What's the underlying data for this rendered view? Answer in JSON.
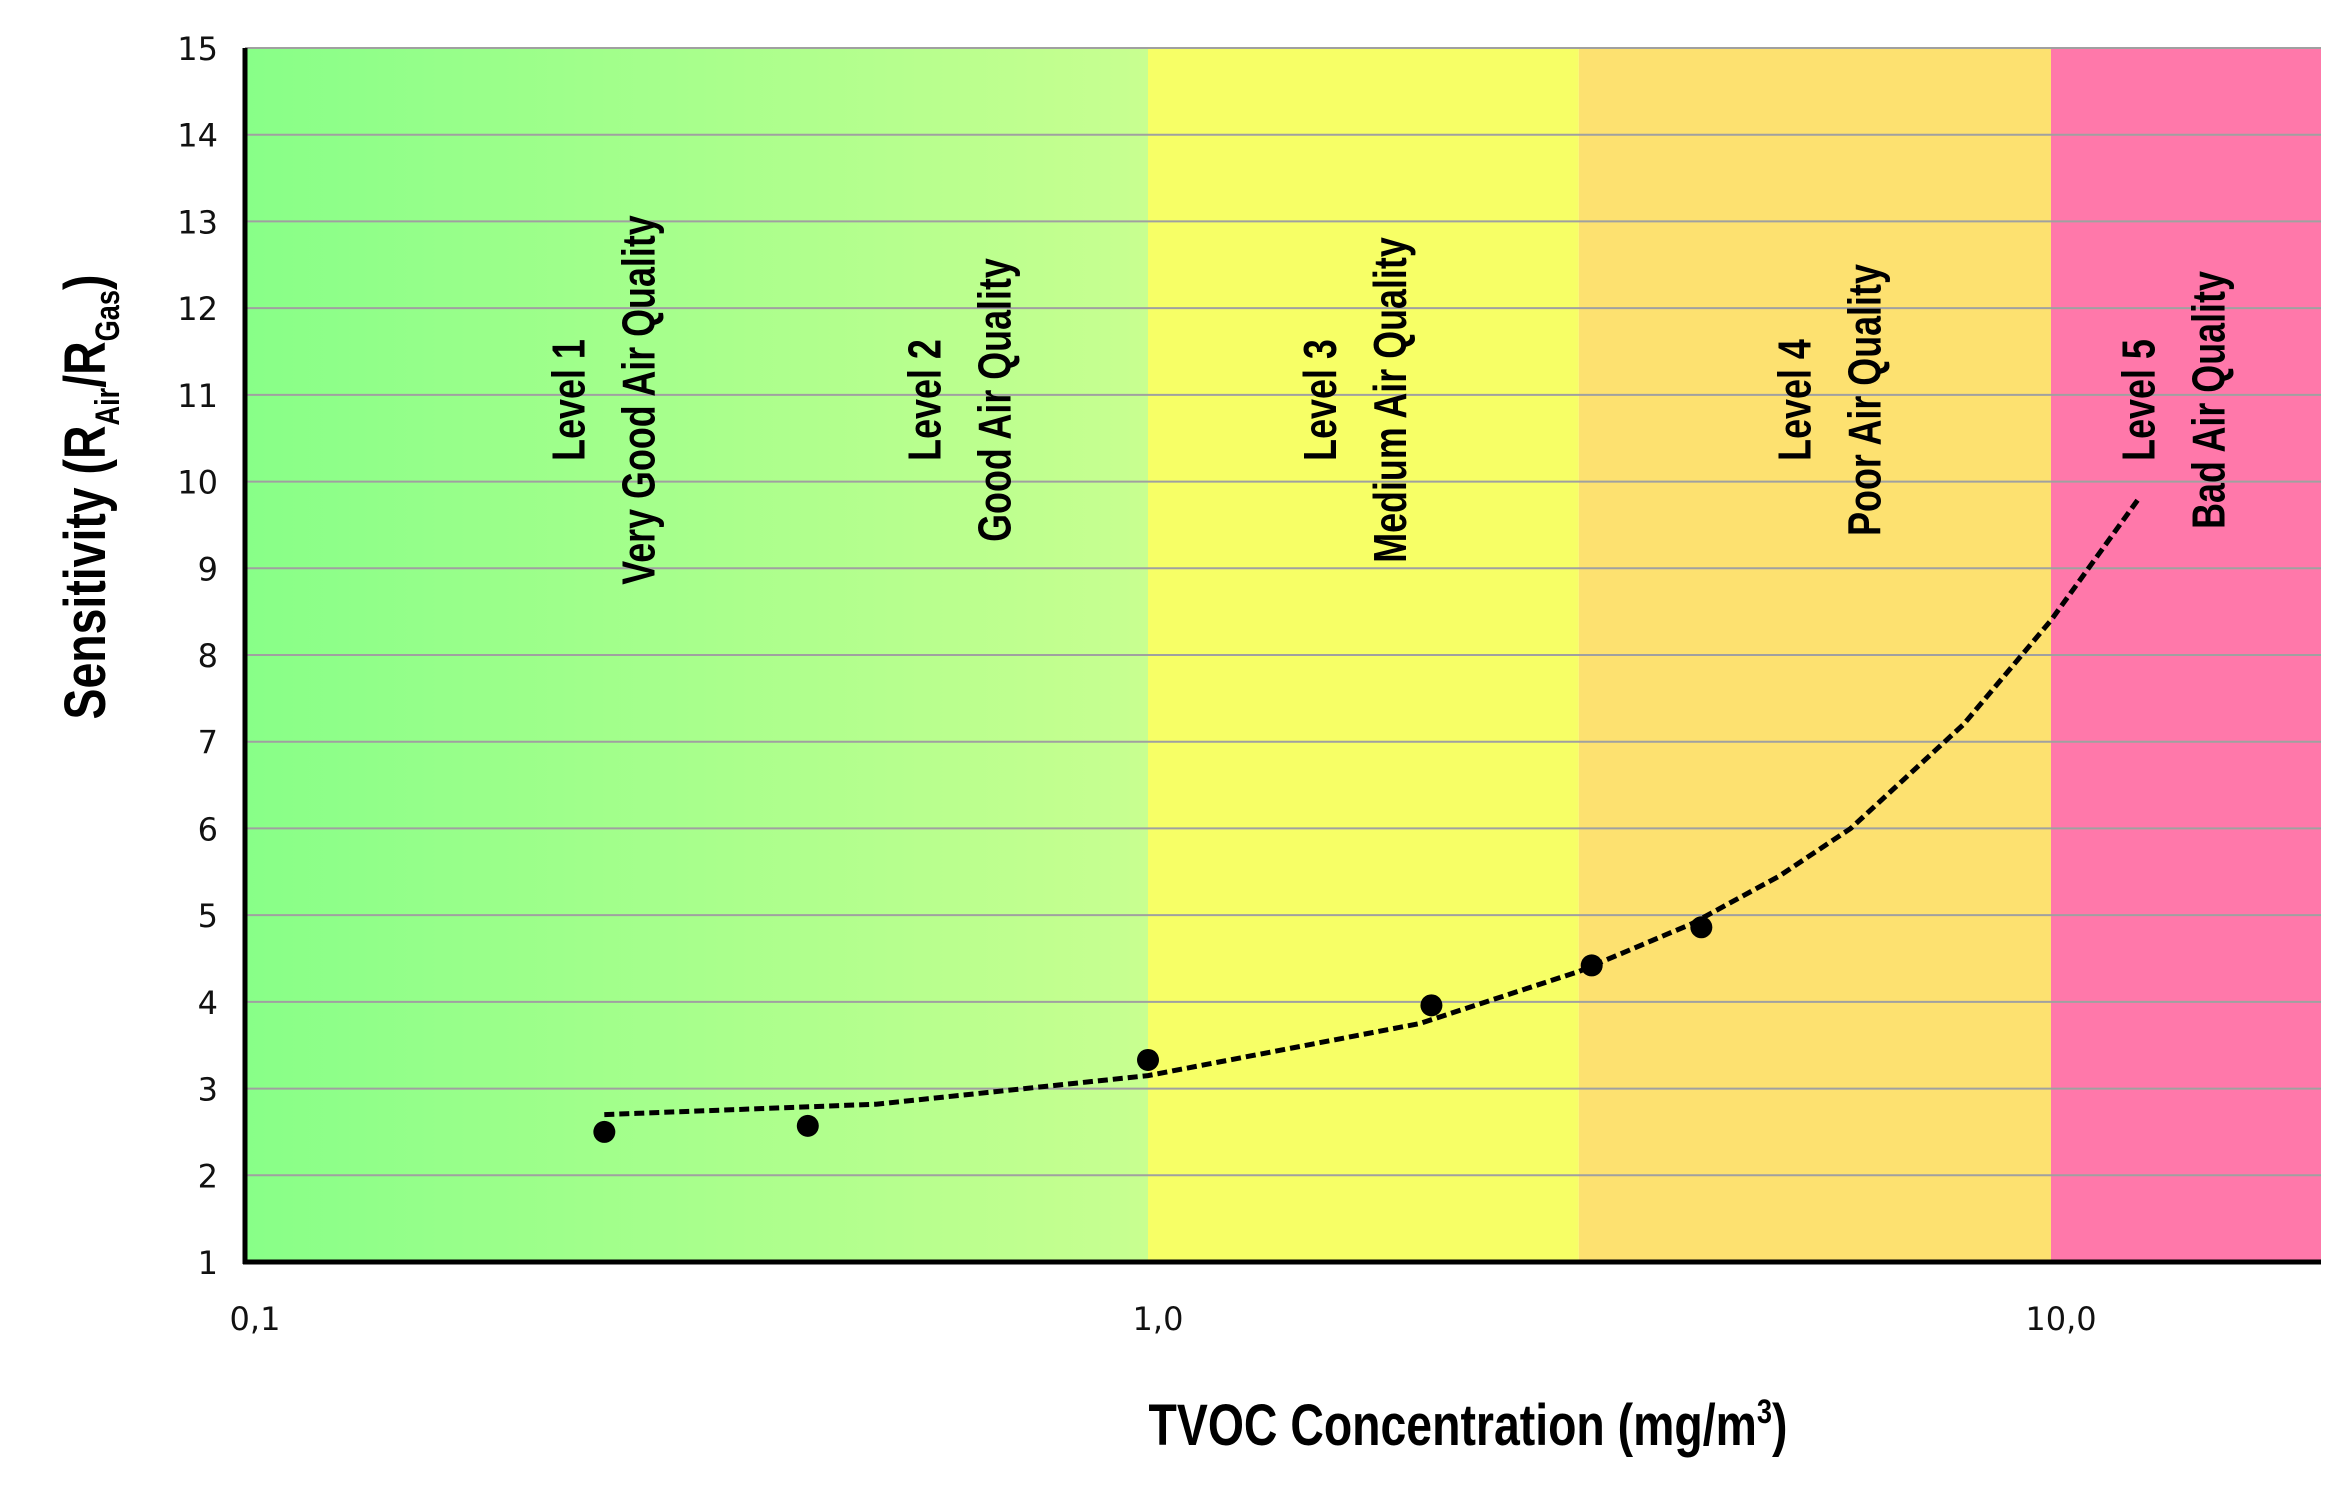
{
  "chart_data": {
    "type": "scatter",
    "title": "",
    "xlabel": {
      "main": "TVOC Concentration (mg/m",
      "sup": "3",
      "end": ")"
    },
    "ylabel": {
      "main": "Sensitivity (R",
      "sub1": "Air",
      "mid": "/R",
      "sub2": "Gas",
      "end": ")"
    },
    "x_scale": "log",
    "xlim": [
      0.1,
      20
    ],
    "ylim": [
      1,
      15
    ],
    "x_ticks": [
      {
        "value": 0.1,
        "label": "0,1"
      },
      {
        "value": 1.0,
        "label": "1,0"
      },
      {
        "value": 10.0,
        "label": "10,0"
      }
    ],
    "y_ticks": [
      1,
      2,
      3,
      4,
      5,
      6,
      7,
      8,
      9,
      10,
      11,
      12,
      13,
      14,
      15
    ],
    "grid": "horizontal",
    "points": {
      "x": [
        0.25,
        0.42,
        1.0,
        2.06,
        3.1,
        4.1
      ],
      "y": [
        2.5,
        2.57,
        3.33,
        3.96,
        4.42,
        4.86
      ]
    },
    "trendline": {
      "style": "dashed",
      "x": [
        0.25,
        0.5,
        1,
        2,
        3,
        4,
        5,
        6,
        8,
        10,
        12.5
      ],
      "y": [
        2.7,
        2.82,
        3.15,
        3.75,
        4.35,
        4.9,
        5.45,
        6.0,
        7.2,
        8.4,
        9.8
      ]
    },
    "zones": [
      {
        "from": 0.1,
        "to": 1.0,
        "level": "Level 1",
        "label": "Very Good Air Quality",
        "label_at": 0.25,
        "color": "#88ff88",
        "color_end": "#c8ff90"
      },
      {
        "from": null,
        "to": null,
        "level": "Level 2",
        "label": "Good Air Quality",
        "label_at": 0.62
      },
      {
        "from": 1.0,
        "to": 3.0,
        "level": "Level 3",
        "label": "Medium Air Quality",
        "label_at": 1.7,
        "color": "#f7ff66"
      },
      {
        "from": 3.0,
        "to": 10.0,
        "level": "Level 4",
        "label": "Poor Air Quality",
        "label_at": 5.7,
        "color": "#fde170"
      },
      {
        "from": 10.0,
        "to": 20,
        "level": "Level 5",
        "label": "Bad Air Quality",
        "label_at": 13.7,
        "color": "#ff78aa"
      }
    ],
    "colors": {
      "grid": "#a0a0a0",
      "axis": "#000000",
      "points": "#000000"
    }
  }
}
